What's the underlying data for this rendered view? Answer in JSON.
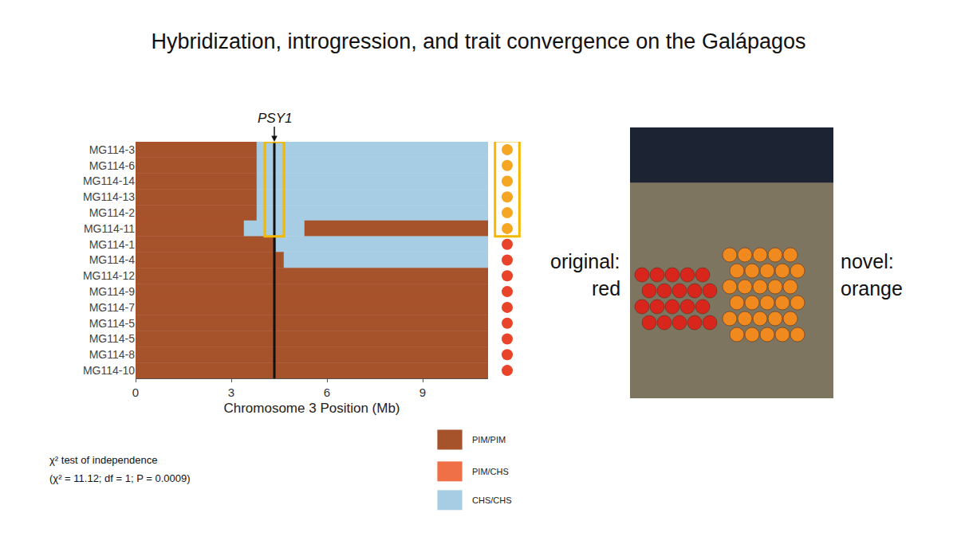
{
  "chart_data": {
    "type": "heatmap",
    "title": "Hybridization, introgression, and trait convergence on the Galápagos",
    "x_label": "Chromosome 3 Position (Mb)",
    "xlim": [
      0,
      11.05
    ],
    "xticks": [
      0,
      3,
      6,
      9
    ],
    "categories": [
      "MG114-3",
      "MG114-6",
      "MG114-14",
      "MG114-13",
      "MG114-2",
      "MG114-11",
      "MG114-1",
      "MG114-4",
      "MG114-12",
      "MG114-9",
      "MG114-7",
      "MG114-5",
      "MG114-5",
      "MG114-8",
      "MG114-10"
    ],
    "genotypes": [
      {
        "name": "PIM/PIM",
        "color": "#a6522b"
      },
      {
        "name": "PIM/CHS",
        "color": "#ef6f46"
      },
      {
        "name": "CHS/CHS",
        "color": "#a6cde3"
      }
    ],
    "segments": [
      [
        {
          "start": 0,
          "end": 3.8,
          "genotype": "PIM/PIM"
        },
        {
          "start": 3.8,
          "end": 11.05,
          "genotype": "CHS/CHS"
        }
      ],
      [
        {
          "start": 0,
          "end": 3.8,
          "genotype": "PIM/PIM"
        },
        {
          "start": 3.8,
          "end": 11.05,
          "genotype": "CHS/CHS"
        }
      ],
      [
        {
          "start": 0,
          "end": 3.8,
          "genotype": "PIM/PIM"
        },
        {
          "start": 3.8,
          "end": 11.05,
          "genotype": "CHS/CHS"
        }
      ],
      [
        {
          "start": 0,
          "end": 3.8,
          "genotype": "PIM/PIM"
        },
        {
          "start": 3.8,
          "end": 11.05,
          "genotype": "CHS/CHS"
        }
      ],
      [
        {
          "start": 0,
          "end": 3.8,
          "genotype": "PIM/PIM"
        },
        {
          "start": 3.8,
          "end": 11.05,
          "genotype": "CHS/CHS"
        }
      ],
      [
        {
          "start": 0,
          "end": 3.4,
          "genotype": "PIM/PIM"
        },
        {
          "start": 3.4,
          "end": 5.3,
          "genotype": "CHS/CHS"
        },
        {
          "start": 5.3,
          "end": 11.05,
          "genotype": "PIM/PIM"
        }
      ],
      [
        {
          "start": 0,
          "end": 4.4,
          "genotype": "PIM/PIM"
        },
        {
          "start": 4.4,
          "end": 11.05,
          "genotype": "CHS/CHS"
        }
      ],
      [
        {
          "start": 0,
          "end": 4.65,
          "genotype": "PIM/PIM"
        },
        {
          "start": 4.65,
          "end": 11.05,
          "genotype": "CHS/CHS"
        }
      ],
      [
        {
          "start": 0,
          "end": 11.05,
          "genotype": "PIM/PIM"
        }
      ],
      [
        {
          "start": 0,
          "end": 11.05,
          "genotype": "PIM/PIM"
        }
      ],
      [
        {
          "start": 0,
          "end": 11.05,
          "genotype": "PIM/PIM"
        }
      ],
      [
        {
          "start": 0,
          "end": 11.05,
          "genotype": "PIM/PIM"
        }
      ],
      [
        {
          "start": 0,
          "end": 11.05,
          "genotype": "PIM/PIM"
        }
      ],
      [
        {
          "start": 0,
          "end": 11.05,
          "genotype": "PIM/PIM"
        }
      ],
      [
        {
          "start": 0,
          "end": 11.05,
          "genotype": "PIM/PIM"
        }
      ]
    ],
    "marker_gene": {
      "label": "PSY1",
      "position": 4.35
    },
    "highlight": {
      "x": [
        4.05,
        4.65
      ],
      "rows": [
        0,
        5
      ],
      "color": "#f5b800"
    },
    "fruit_colors": [
      "#f5a623",
      "#f5a623",
      "#f5a623",
      "#f5a623",
      "#f5a623",
      "#f5a623",
      "#e8442a",
      "#e8442a",
      "#e8442a",
      "#e8442a",
      "#e8442a",
      "#e8442a",
      "#e8442a",
      "#e8442a",
      "#e8442a"
    ],
    "annotations": [
      "χ² test of independence",
      "(χ² = 11.12; df = 1; P = 0.0009)"
    ],
    "photo_labels": {
      "left": [
        "original:",
        "red"
      ],
      "right": [
        "novel:",
        "orange"
      ]
    }
  }
}
